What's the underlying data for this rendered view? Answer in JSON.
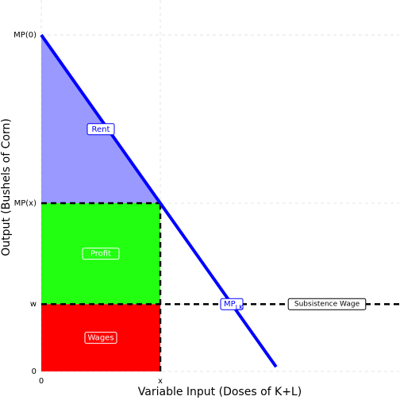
{
  "chart_data": {
    "type": "line",
    "xlabel": "Variable Input (Doses of K+L)",
    "ylabel": "Output (Bushels of Corn)",
    "xlim": [
      0,
      3.007
    ],
    "ylim": [
      0,
      11.04
    ],
    "xticks": [
      0,
      {
        "value": 1,
        "label": "x"
      }
    ],
    "yticks": [
      0,
      {
        "value": 2,
        "label": "w"
      },
      {
        "value": 5,
        "label": "MP(x)"
      },
      {
        "value": 10,
        "label": "MP(0)"
      }
    ],
    "grid": true,
    "series": [
      {
        "name": "MP",
        "name_subscript": "LK",
        "color": "#0000ff",
        "x": [
          0,
          1.973
        ],
        "values": [
          10,
          0.135
        ]
      }
    ],
    "regions": [
      {
        "label": "Rent",
        "color": "#9999ff"
      },
      {
        "label": "Profit",
        "color": "#22ff11"
      },
      {
        "label": "Wages",
        "color": "#ff0000"
      }
    ],
    "annotations": [
      "Subsistence Wage"
    ]
  }
}
